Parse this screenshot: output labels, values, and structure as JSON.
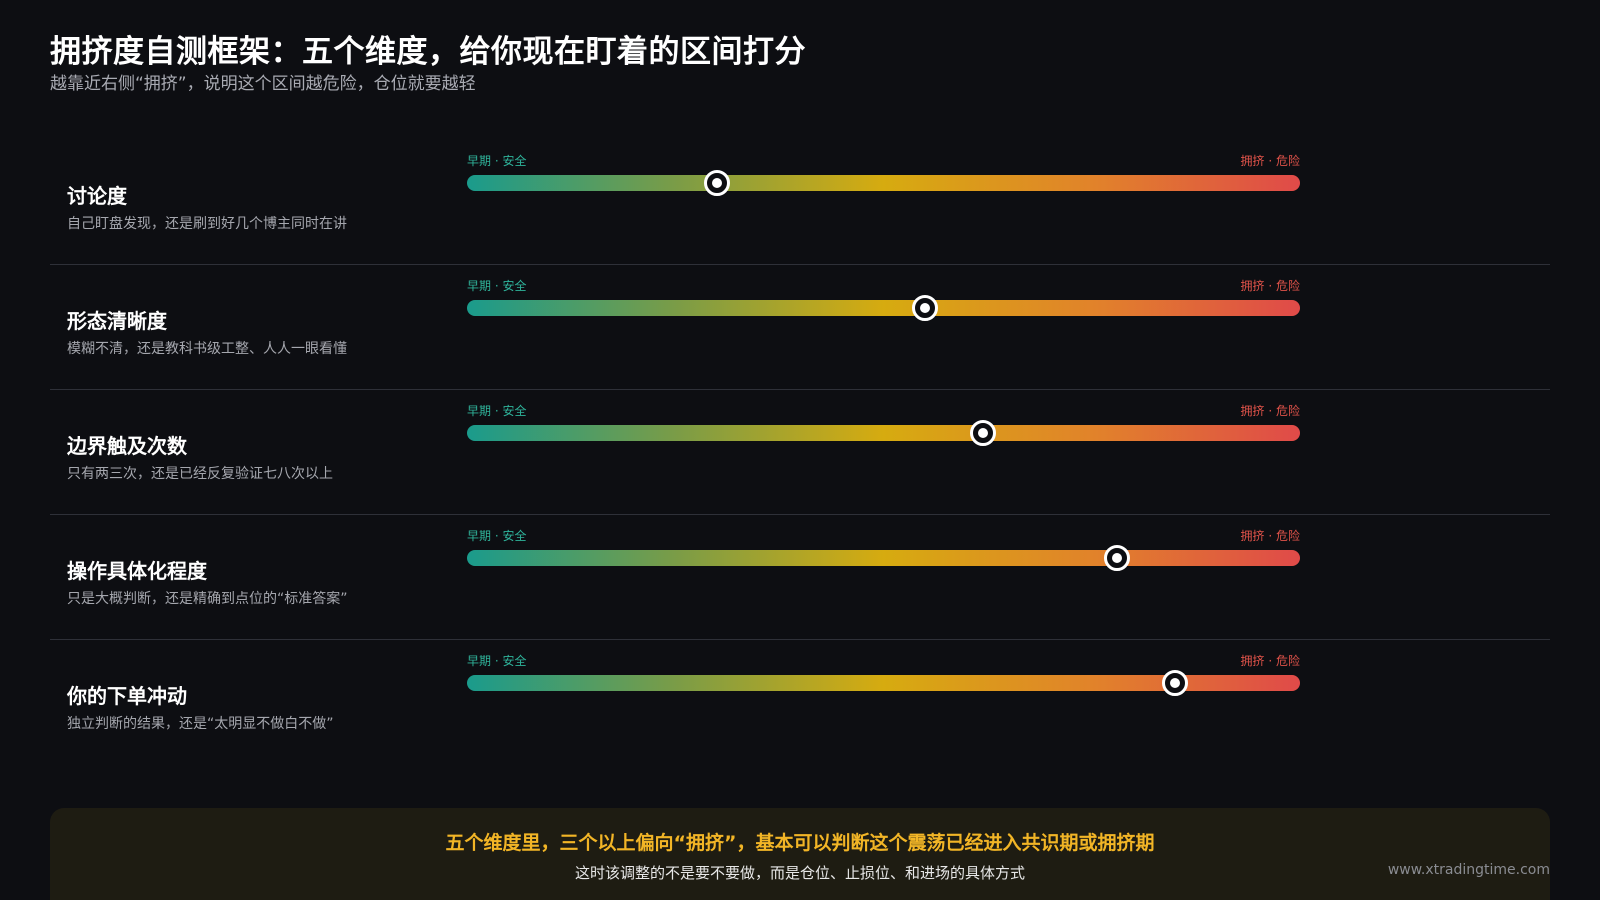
{
  "header": {
    "title": "拥挤度自测框架：五个维度，给你现在盯着的区间打分",
    "subtitle": "越靠近右侧“拥挤”，说明这个区间越危险，仓位就要越轻"
  },
  "scale": {
    "left_label": "早期 · 安全",
    "right_label": "拥挤 · 危险",
    "colors": [
      "#1a9b8c",
      "#7a9c47",
      "#d6ab10",
      "#e1832a",
      "#e04a49"
    ]
  },
  "dimensions": [
    {
      "name": "讨论度",
      "desc": "自己盯盘发现，还是刷到好几个博主同时在讲",
      "value": 0.3
    },
    {
      "name": "形态清晰度",
      "desc": "模糊不清，还是教科书级工整、人人一眼看懂",
      "value": 0.55
    },
    {
      "name": "边界触及次数",
      "desc": "只有两三次，还是已经反复验证七八次以上",
      "value": 0.62
    },
    {
      "name": "操作具体化程度",
      "desc": "只是大概判断，还是精确到点位的“标准答案”",
      "value": 0.78
    },
    {
      "name": "你的下单冲动",
      "desc": "独立判断的结果，还是“太明显不做白不做”",
      "value": 0.85
    }
  ],
  "callout": {
    "main": "五个维度里，三个以上偏向“拥挤”，基本可以判断这个震荡已经进入共识期或拥挤期",
    "sub": "这时该调整的不是要不要做，而是仓位、止损位、和进场的具体方式",
    "accent": "#f2b526"
  },
  "watermark": "www.xtradingtime.com"
}
